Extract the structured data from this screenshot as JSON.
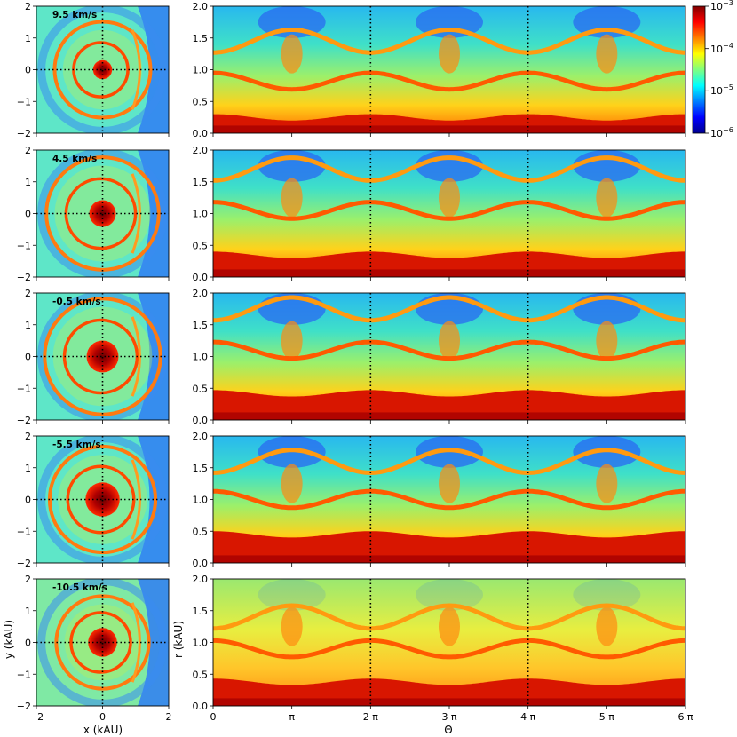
{
  "colorbar": {
    "scale": "log",
    "range": [
      1e-06,
      0.001
    ],
    "cmap": "jet",
    "ticks": [
      {
        "base": "10",
        "exp": "−3"
      },
      {
        "base": "10",
        "exp": "−4"
      },
      {
        "base": "10",
        "exp": "−5"
      },
      {
        "base": "10",
        "exp": "−6"
      }
    ]
  },
  "axis_labels": {
    "left_x": "x (kAU)",
    "left_y": "y (kAU)",
    "right_x": "Θ",
    "right_y": "r (kAU)"
  },
  "chart_data": [
    {
      "type": "heatmap",
      "label": "9.5 km/s",
      "left": {
        "xlim": [
          -2,
          2
        ],
        "ylim": [
          -2,
          2
        ],
        "xticks": [
          "−2",
          "0",
          "2"
        ],
        "yticks": [
          "−2",
          "−1",
          "0",
          "1",
          "2"
        ]
      },
      "right": {
        "xlim": [
          0,
          6
        ],
        "ylim": [
          0,
          2.0
        ],
        "yticks": [
          "0.0",
          "0.5",
          "1.0",
          "1.5",
          "2.0"
        ],
        "shock_radii": [
          0.82,
          1.45
        ],
        "inner_radius": 0.25
      },
      "guides": {
        "left": "dotted crosshair at x=0, y=0",
        "right": "dotted verticals at Θ=2π, 4π"
      }
    },
    {
      "type": "heatmap",
      "label": "4.5 km/s",
      "left": {
        "xlim": [
          -2,
          2
        ],
        "ylim": [
          -2,
          2
        ],
        "xticks": [
          "−2",
          "0",
          "2"
        ],
        "yticks": [
          "−2",
          "−1",
          "0",
          "1",
          "2"
        ]
      },
      "right": {
        "xlim": [
          0,
          6
        ],
        "ylim": [
          0,
          2.0
        ],
        "yticks": [
          "0.0",
          "0.5",
          "1.0",
          "1.5",
          "2.0"
        ],
        "shock_radii": [
          1.05,
          1.7
        ],
        "inner_radius": 0.35
      }
    },
    {
      "type": "heatmap",
      "label": "-0.5 km/s",
      "left": {
        "xlim": [
          -2,
          2
        ],
        "ylim": [
          -2,
          2
        ],
        "xticks": [
          "−2",
          "0",
          "2"
        ],
        "yticks": [
          "−2",
          "−1",
          "0",
          "1",
          "2"
        ]
      },
      "right": {
        "xlim": [
          0,
          6
        ],
        "ylim": [
          0,
          2.0
        ],
        "yticks": [
          "0.0",
          "0.5",
          "1.0",
          "1.5",
          "2.0"
        ],
        "shock_radii": [
          1.1,
          1.75
        ],
        "inner_radius": 0.42
      }
    },
    {
      "type": "heatmap",
      "label": "-5.5 km/s",
      "left": {
        "xlim": [
          -2,
          2
        ],
        "ylim": [
          -2,
          2
        ],
        "xticks": [
          "−2",
          "0",
          "2"
        ],
        "yticks": [
          "−2",
          "−1",
          "0",
          "1",
          "2"
        ]
      },
      "right": {
        "xlim": [
          0,
          6
        ],
        "ylim": [
          0,
          2.0
        ],
        "yticks": [
          "0.0",
          "0.5",
          "1.0",
          "1.5",
          "2.0"
        ],
        "shock_radii": [
          1.0,
          1.6
        ],
        "inner_radius": 0.45
      }
    },
    {
      "type": "heatmap",
      "label": "-10.5 km/s",
      "left": {
        "xlim": [
          -2,
          2
        ],
        "ylim": [
          -2,
          2
        ],
        "xticks": [
          "−2",
          "0",
          "2"
        ],
        "yticks": [
          "−2",
          "−1",
          "0",
          "1",
          "2"
        ],
        "xlabel": "x (kAU)",
        "ylabel": "y (kAU)"
      },
      "right": {
        "xlim": [
          0,
          6
        ],
        "ylim": [
          0,
          2.0
        ],
        "yticks": [
          "0.0",
          "0.5",
          "1.0",
          "1.5",
          "2.0"
        ],
        "xticks": [
          "0",
          "π",
          "2 π",
          "3 π",
          "4 π",
          "5 π",
          "6 π"
        ],
        "xlabel": "Θ",
        "ylabel": "r (kAU)",
        "shock_radii": [
          0.9,
          1.4
        ],
        "inner_radius": 0.38
      }
    }
  ]
}
